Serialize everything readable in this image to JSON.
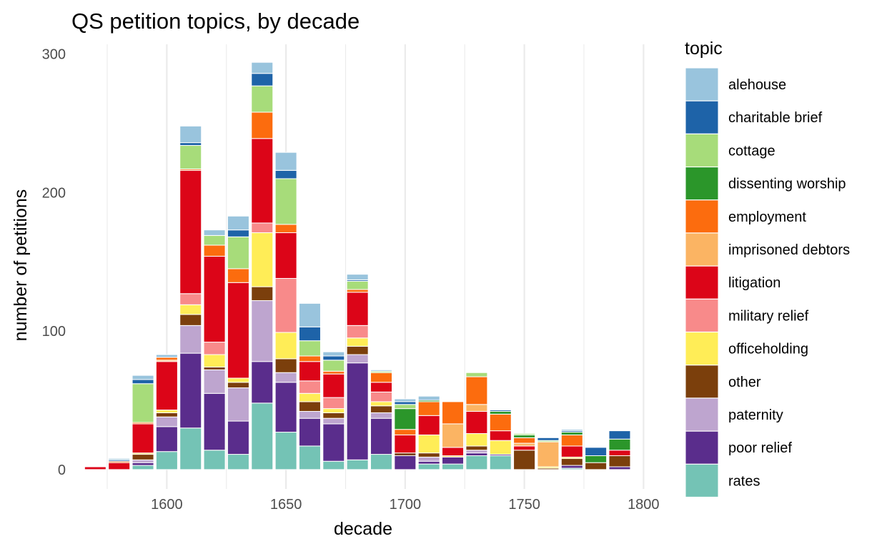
{
  "chart_data": {
    "type": "bar",
    "stacked": true,
    "title": "QS petition topics, by decade",
    "xlabel": "decade",
    "ylabel": "number of petitions",
    "xlim": [
      1560,
      1805
    ],
    "ylim": [
      -14,
      307
    ],
    "x_ticks": [
      1600,
      1650,
      1700,
      1750,
      1800
    ],
    "y_ticks": [
      0,
      100,
      200,
      300
    ],
    "grid": true,
    "legend": {
      "title": "topic",
      "position": "right"
    },
    "x": [
      1570,
      1580,
      1590,
      1600,
      1610,
      1620,
      1630,
      1640,
      1650,
      1660,
      1670,
      1680,
      1690,
      1700,
      1710,
      1720,
      1730,
      1740,
      1750,
      1760,
      1770,
      1780,
      1790
    ],
    "series": [
      {
        "name": "rates",
        "color": "#74c3b5",
        "values": [
          0,
          0,
          3,
          13,
          30,
          14,
          11,
          48,
          27,
          17,
          6,
          7,
          11,
          0,
          4,
          4,
          10,
          10,
          0,
          0,
          1,
          0,
          0
        ]
      },
      {
        "name": "poor relief",
        "color": "#5a2d8c",
        "values": [
          0,
          0,
          2,
          18,
          54,
          41,
          24,
          30,
          36,
          20,
          27,
          70,
          26,
          10,
          2,
          5,
          2,
          1,
          0,
          0,
          2,
          0,
          2
        ]
      },
      {
        "name": "paternity",
        "color": "#bea5cf",
        "values": [
          0,
          0,
          2,
          7,
          20,
          17,
          24,
          44,
          7,
          5,
          4,
          6,
          4,
          0,
          3,
          0,
          2,
          0,
          0,
          0,
          0,
          0,
          0
        ]
      },
      {
        "name": "other",
        "color": "#7b3f0c",
        "values": [
          0,
          0,
          4,
          3,
          8,
          2,
          4,
          10,
          10,
          7,
          4,
          6,
          5,
          2,
          3,
          0,
          3,
          0,
          14,
          1,
          5,
          5,
          8
        ]
      },
      {
        "name": "officeholding",
        "color": "#ffed57",
        "values": [
          0,
          0,
          1,
          2,
          7,
          9,
          3,
          39,
          19,
          6,
          3,
          6,
          3,
          0,
          13,
          1,
          9,
          10,
          0,
          1,
          1,
          0,
          0
        ]
      },
      {
        "name": "military relief",
        "color": "#f88a8a",
        "values": [
          0,
          0,
          0,
          0,
          8,
          9,
          0,
          7,
          39,
          9,
          8,
          9,
          7,
          0,
          0,
          0,
          0,
          0,
          0,
          0,
          0,
          0,
          0
        ]
      },
      {
        "name": "litigation",
        "color": "#dc0518",
        "values": [
          2,
          5,
          21,
          35,
          89,
          62,
          69,
          61,
          33,
          14,
          17,
          24,
          7,
          13,
          14,
          6,
          16,
          7,
          3,
          0,
          8,
          0,
          4
        ]
      },
      {
        "name": "imprisoned debtors",
        "color": "#fbb463",
        "values": [
          0,
          0,
          0,
          1,
          0,
          0,
          0,
          0,
          0,
          0,
          0,
          0,
          0,
          0,
          0,
          17,
          5,
          0,
          2,
          18,
          0,
          0,
          0
        ]
      },
      {
        "name": "employment",
        "color": "#fc6c0e",
        "values": [
          0,
          1,
          1,
          2,
          1,
          8,
          10,
          19,
          6,
          4,
          2,
          2,
          7,
          4,
          10,
          16,
          20,
          12,
          4,
          0,
          8,
          0,
          0
        ]
      },
      {
        "name": "dissenting worship",
        "color": "#2b962a",
        "values": [
          0,
          0,
          0,
          0,
          0,
          0,
          0,
          0,
          0,
          0,
          0,
          0,
          0,
          15,
          1,
          0,
          0,
          2,
          2,
          0,
          2,
          5,
          8
        ]
      },
      {
        "name": "cottage",
        "color": "#a7dc7a",
        "values": [
          0,
          0,
          28,
          0,
          17,
          7,
          23,
          19,
          33,
          11,
          8,
          6,
          1,
          3,
          0,
          0,
          3,
          0,
          1,
          1,
          0,
          0,
          0
        ]
      },
      {
        "name": "charitable brief",
        "color": "#1e63a8",
        "values": [
          0,
          1,
          3,
          0,
          2,
          0,
          5,
          9,
          6,
          10,
          3,
          1,
          0,
          2,
          0,
          0,
          0,
          1,
          0,
          2,
          1,
          6,
          6
        ]
      },
      {
        "name": "alehouse",
        "color": "#99c4dd",
        "values": [
          0,
          1,
          3,
          2,
          12,
          4,
          10,
          8,
          13,
          17,
          3,
          4,
          1,
          2,
          3,
          0,
          0,
          0,
          0,
          0,
          1,
          0,
          0
        ]
      }
    ]
  }
}
